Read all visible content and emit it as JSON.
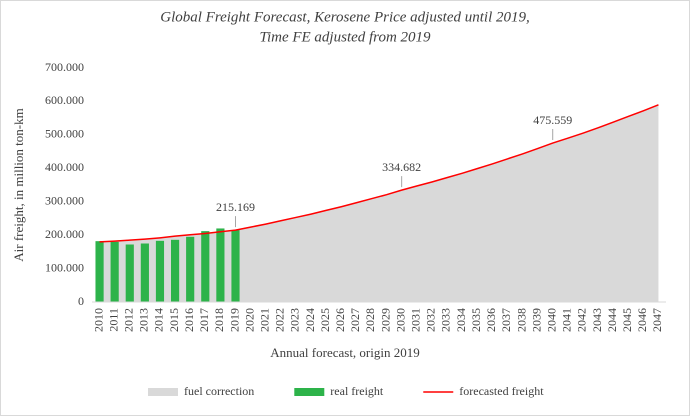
{
  "chart_data": {
    "type": "bar_line_area",
    "title": [
      "Global Freight Forecast, Kerosene Price adjusted until 2019,",
      "Time FE adjusted from 2019"
    ],
    "xlabel": "Annual forecast, origin 2019",
    "ylabel": "Air freight, in million ton-km",
    "categories": [
      "2010",
      "2011",
      "2012",
      "2013",
      "2014",
      "2015",
      "2016",
      "2017",
      "2018",
      "2019",
      "2020",
      "2021",
      "2022",
      "2023",
      "2024",
      "2025",
      "2026",
      "2027",
      "2028",
      "2029",
      "2030",
      "2031",
      "2032",
      "2033",
      "2034",
      "2035",
      "2036",
      "2037",
      "2038",
      "2039",
      "2040",
      "2041",
      "2042",
      "2043",
      "2044",
      "2045",
      "2046",
      "2047"
    ],
    "ylim": [
      0,
      700000
    ],
    "yticks": [
      0,
      {
        "value": 100000,
        "label": "100.000"
      },
      {
        "value": 200000,
        "label": "200.000"
      },
      {
        "value": 300000,
        "label": "300.000"
      },
      {
        "value": 400000,
        "label": "400.000"
      },
      {
        "value": 500000,
        "label": "500.000"
      },
      {
        "value": 600000,
        "label": "600.000"
      },
      {
        "value": 700000,
        "label": "700.000"
      }
    ],
    "series": [
      {
        "name": "fuel correction",
        "kind": "area",
        "color": "#d9d9d9",
        "values": [
          180000,
          182000,
          185000,
          188000,
          192000,
          197000,
          201000,
          205000,
          210000,
          215169,
          224000,
          233000,
          243000,
          253000,
          263000,
          274000,
          285000,
          297000,
          309000,
          321000,
          334682,
          347000,
          359000,
          372000,
          385000,
          399000,
          413000,
          428000,
          443000,
          459000,
          475559,
          490000,
          505000,
          521000,
          538000,
          555000,
          572000,
          590000
        ]
      },
      {
        "name": "real freight",
        "kind": "bar",
        "color": "#2db34a",
        "values": [
          182000,
          180000,
          172000,
          175000,
          183000,
          186000,
          195000,
          212000,
          220000,
          215169,
          null,
          null,
          null,
          null,
          null,
          null,
          null,
          null,
          null,
          null,
          null,
          null,
          null,
          null,
          null,
          null,
          null,
          null,
          null,
          null,
          null,
          null,
          null,
          null,
          null,
          null,
          null,
          null
        ]
      },
      {
        "name": "forecasted freight",
        "kind": "line",
        "color": "#ff0000",
        "values": [
          180000,
          182000,
          185000,
          188000,
          192000,
          197000,
          201000,
          205000,
          210000,
          215169,
          224000,
          233000,
          243000,
          253000,
          263000,
          274000,
          285000,
          297000,
          309000,
          321000,
          334682,
          347000,
          359000,
          372000,
          385000,
          399000,
          413000,
          428000,
          443000,
          459000,
          475559,
          490000,
          505000,
          521000,
          538000,
          555000,
          572000,
          590000
        ],
        "value_labels": [
          null,
          null,
          null,
          null,
          null,
          null,
          null,
          null,
          null,
          "215.169",
          null,
          null,
          null,
          null,
          null,
          null,
          null,
          null,
          null,
          null,
          "334.682",
          null,
          null,
          null,
          null,
          null,
          null,
          null,
          null,
          null,
          "475.559",
          null,
          null,
          null,
          null,
          null,
          null,
          null
        ]
      }
    ],
    "legend": "bottom"
  }
}
